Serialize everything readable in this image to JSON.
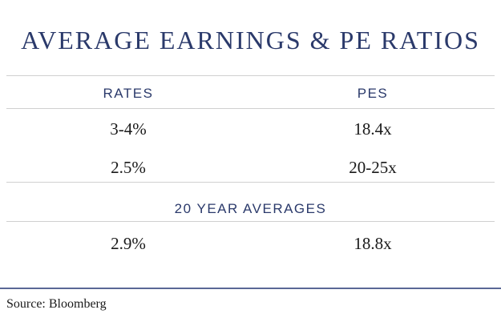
{
  "title": "AVERAGE EARNINGS & PE RATIOS",
  "table": {
    "headers": [
      "RATES",
      "PES"
    ],
    "rows": [
      [
        "3-4%",
        "18.4x"
      ],
      [
        "2.5%",
        "20-25x"
      ]
    ],
    "section_title": "20 YEAR AVERAGES",
    "averages_row": [
      "2.9%",
      "18.8x"
    ]
  },
  "source": "Source: Bloomberg",
  "colors": {
    "title": "#2b3a6b",
    "rule_light": "#d0d0d0",
    "rule_dark": "#5a6896",
    "text": "#1a1a1a"
  }
}
